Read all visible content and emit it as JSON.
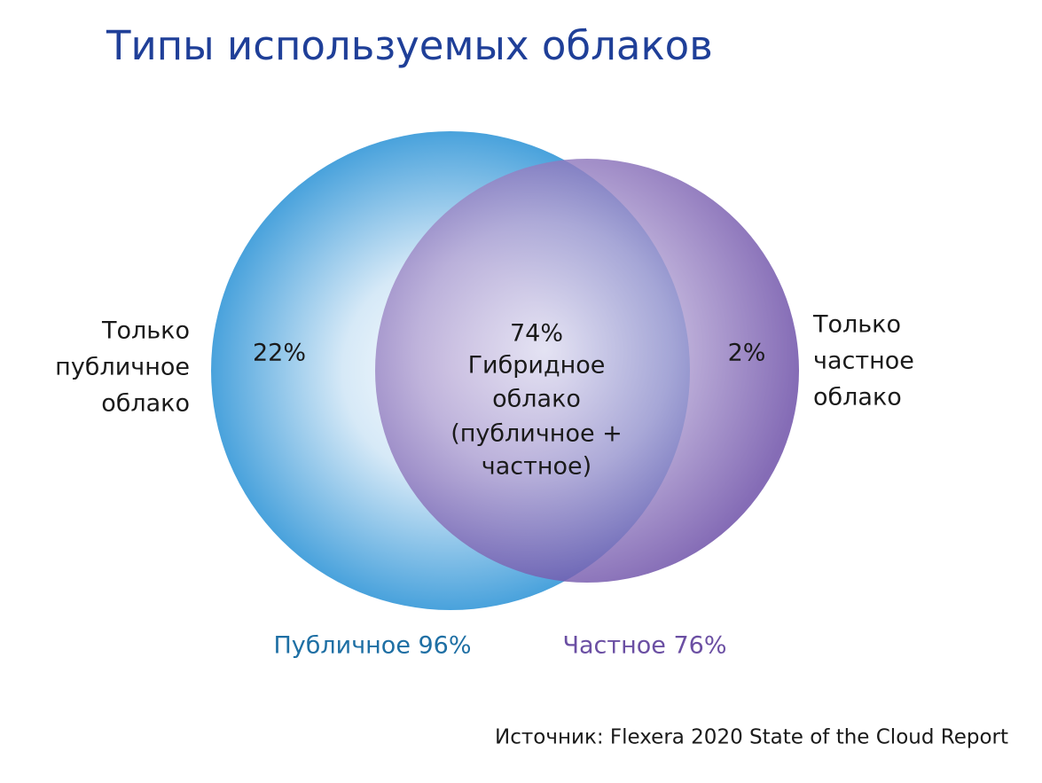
{
  "header": {
    "title": "Типы используемых облаков"
  },
  "regions": {
    "public_only": {
      "label_lines": [
        "Только",
        "публичное",
        "облако"
      ],
      "value": "22%"
    },
    "hybrid": {
      "value": "74%",
      "label_lines": [
        "Гибридное",
        "облако",
        "(публичное +",
        "частное)"
      ]
    },
    "private_only": {
      "label_lines": [
        "Только",
        "частное",
        "облако"
      ],
      "value": "2%"
    }
  },
  "sets": [
    {
      "label": "Публичное 96%"
    },
    {
      "label": "Частное 76%"
    }
  ],
  "source": "Источник: Flexera 2020 State of the Cloud Report"
}
